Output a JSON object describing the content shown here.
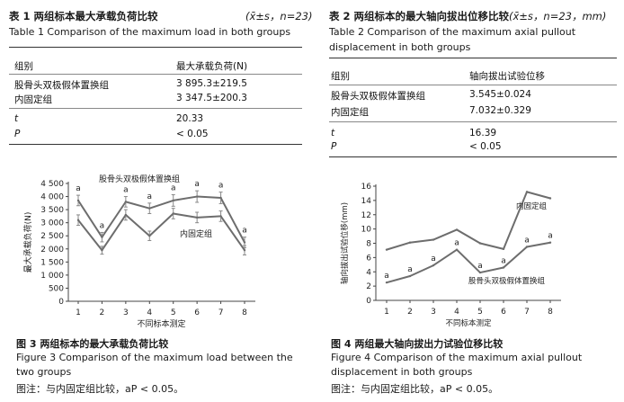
{
  "table1": {
    "title_zh": "表 1 两组标本最大承载负荷比较",
    "title_meta": "(x̄±s，n=23)",
    "title_en": "Table 1 Comparison of the maximum load in both groups",
    "headers": [
      "组别",
      "最大承载负荷(N)"
    ],
    "rows": [
      [
        "股骨头双极假体置换组",
        "3 895.3±219.5"
      ],
      [
        "内固定组",
        "3 347.5±200.3"
      ]
    ],
    "stats": [
      [
        "t",
        "20.33"
      ],
      [
        "P",
        "< 0.05"
      ]
    ]
  },
  "table2": {
    "title_zh": "表 2 两组标本的最大轴向拔出位移比较",
    "title_meta": "(x̄±s，n=23，mm)",
    "title_en": "Table 2 Comparison of the maximum axial pullout displacement in both groups",
    "headers": [
      "组别",
      "轴向拔出试验位移"
    ],
    "rows": [
      [
        "股骨头双极假体置换组",
        "3.545±0.024"
      ],
      [
        "内固定组",
        "7.032±0.329"
      ]
    ],
    "stats": [
      [
        "t",
        "16.39"
      ],
      [
        "P",
        "< 0.05"
      ]
    ]
  },
  "figure3": {
    "caption_zh": "图 3 两组标本的最大承载负荷比较",
    "caption_en": "Figure 3 Comparison of the maximum load between the two groups",
    "note": "图注：与内固定组比较，aP < 0.05。"
  },
  "figure4": {
    "caption_zh": "图 4 两组最大轴向拔出力试验位移比较",
    "caption_en": "Figure 4 Comparison of the maximum axial pullout displacement in both groups",
    "note": "图注：与内固定组比较，aP < 0.05。"
  },
  "chart_data": [
    {
      "type": "line",
      "ylabel": "最大承载负荷(N)",
      "xlabel": "不同标本测定",
      "x": [
        1,
        2,
        3,
        4,
        5,
        6,
        7,
        8
      ],
      "ylim": [
        0,
        4500
      ],
      "yticks": [
        0,
        500,
        1000,
        1500,
        2000,
        2500,
        3000,
        3500,
        4000,
        4500
      ],
      "ytick_labels": [
        "0",
        "500",
        "1 000",
        "1 500",
        "2 000",
        "2 500",
        "3 000",
        "3 500",
        "4 000",
        "4 500"
      ],
      "grid": false,
      "series": [
        {
          "name": "股骨头双极假体置换组",
          "values": [
            3850,
            2450,
            3800,
            3550,
            3850,
            4000,
            3950,
            2250
          ],
          "errors": [
            200,
            180,
            200,
            200,
            220,
            220,
            220,
            200
          ],
          "markers": [
            "a",
            "a",
            "a",
            "a",
            "a",
            "a",
            "a",
            "a"
          ]
        },
        {
          "name": "内固定组",
          "values": [
            3100,
            1950,
            3300,
            2500,
            3350,
            3200,
            3250,
            1950
          ],
          "errors": [
            200,
            150,
            200,
            180,
            200,
            200,
            200,
            180
          ],
          "markers": []
        }
      ],
      "colors": [
        "#6d6d6d",
        "#6d6d6d"
      ]
    },
    {
      "type": "line",
      "ylabel": "轴向拔出试验位移(mm)",
      "xlabel": "不同标本测定",
      "x": [
        1,
        2,
        3,
        4,
        5,
        6,
        7,
        8
      ],
      "ylim": [
        0,
        16
      ],
      "yticks": [
        0,
        2,
        4,
        6,
        8,
        10,
        12,
        14,
        16
      ],
      "ytick_labels": [
        "0",
        "2",
        "4",
        "6",
        "8",
        "10",
        "12",
        "14",
        "16"
      ],
      "grid": false,
      "series": [
        {
          "name": "内固定组",
          "values": [
            7.1,
            8.1,
            8.5,
            9.9,
            8.0,
            7.2,
            15.2,
            14.3
          ],
          "markers": []
        },
        {
          "name": "股骨头双极假体置换组",
          "values": [
            2.5,
            3.4,
            4.9,
            7.1,
            3.9,
            4.6,
            7.5,
            8.1
          ],
          "markers": [
            "a",
            "a",
            "a",
            "a",
            "a",
            "a",
            "a",
            "a"
          ]
        }
      ],
      "colors": [
        "#6d6d6d",
        "#6d6d6d"
      ]
    }
  ]
}
